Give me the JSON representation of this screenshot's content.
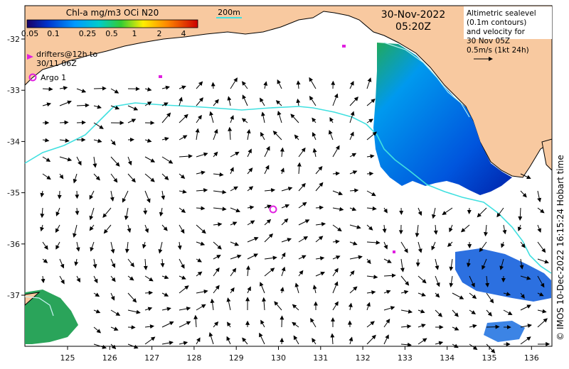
{
  "colorbar": {
    "title": "Chl-a mg/m3 OCi N20",
    "ticks": [
      "0.05",
      "0.1",
      "0.25",
      "0.5",
      "1",
      "2",
      "4"
    ]
  },
  "scale_bar": {
    "label": "200m"
  },
  "legend": {
    "drifters_line1": "drifters@12h to",
    "drifters_line2": "30/11 06Z",
    "argo": "Argo 1"
  },
  "timestamp": {
    "date": "30-Nov-2022",
    "time": "05:20Z"
  },
  "info_box": {
    "line1": "Altimetric sealevel",
    "line2": "(0.1m contours)",
    "line3": "and velocity for",
    "line4": "30 Nov 05Z",
    "line5": "0.5m/s (1kt 24h)"
  },
  "credit": "© IMOS 10-Dec-2022 16:15:24 Hobart time",
  "axes": {
    "lon_ticks": [
      "125",
      "126",
      "127",
      "128",
      "129",
      "130",
      "131",
      "132",
      "133",
      "134",
      "135",
      "136"
    ],
    "lat_ticks": [
      "-32",
      "-33",
      "-34",
      "-35",
      "-36",
      "-37"
    ]
  },
  "colors": {
    "land": "#f8c9a0",
    "contour": "#40e0e0",
    "argo": "#e020e0",
    "chl_low": "#0033cc",
    "chl_mid": "#1e90ff",
    "chl_high": "#22aa44"
  }
}
